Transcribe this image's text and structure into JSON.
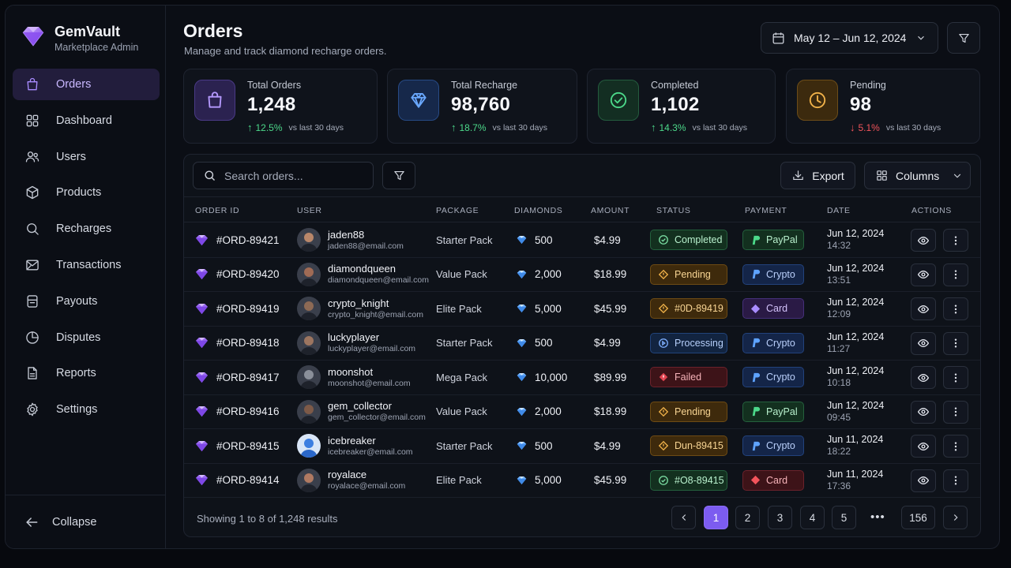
{
  "brand": {
    "name": "GemVault",
    "subtitle": "Marketplace Admin"
  },
  "sidebar": {
    "items": [
      {
        "label": "Orders",
        "icon": "shopping-bag-icon",
        "active": true
      },
      {
        "label": "Dashboard",
        "icon": "grid-icon"
      },
      {
        "label": "Users",
        "icon": "users-icon"
      },
      {
        "label": "Products",
        "icon": "box-icon"
      },
      {
        "label": "Recharges",
        "icon": "search-icon"
      },
      {
        "label": "Transactions",
        "icon": "transactions-icon"
      },
      {
        "label": "Payouts",
        "icon": "wallet-icon"
      },
      {
        "label": "Disputes",
        "icon": "pie-icon"
      },
      {
        "label": "Reports",
        "icon": "document-icon"
      },
      {
        "label": "Settings",
        "icon": "gear-icon"
      }
    ],
    "collapse_label": "Collapse"
  },
  "header": {
    "title": "Orders",
    "subtitle": "Manage and track diamond recharge orders.",
    "date_range": "May 12 – Jun 12, 2024"
  },
  "stats": [
    {
      "label": "Total Orders",
      "value": "1,248",
      "delta": "12.5%",
      "direction": "up",
      "note": "vs last 30 days",
      "color": "#a98cff"
    },
    {
      "label": "Total Recharge",
      "value": "98,760",
      "delta": "18.7%",
      "direction": "up",
      "note": "vs last 30 days",
      "color": "#5ea3ff"
    },
    {
      "label": "Completed",
      "value": "1,102",
      "delta": "14.3%",
      "direction": "up",
      "note": "vs last 30 days",
      "color": "#4cd98a"
    },
    {
      "label": "Pending",
      "value": "98",
      "delta": "5.1%",
      "direction": "down",
      "note": "vs last 30 days",
      "color": "#f2b34a"
    }
  ],
  "toolbar": {
    "search_placeholder": "Search orders...",
    "export_label": "Export",
    "columns_label": "Columns"
  },
  "table": {
    "columns": [
      "ORDER ID",
      "USER",
      "PACKAGE",
      "DIAMONDS",
      "AMOUNT",
      "STATUS",
      "PAYMENT",
      "DATE",
      "ACTIONS"
    ],
    "rows": [
      {
        "id": "#ORD-89421",
        "user": "jaden88",
        "email": "jaden88@email.com",
        "package": "Starter Pack",
        "diamonds": "500",
        "amount": "$4.99",
        "status": "Completed",
        "status_type": "completed",
        "payment": "PayPal",
        "payment_type": "paypal",
        "date": "Jun 12, 2024",
        "time": "14:32",
        "avatar": "#b9876a"
      },
      {
        "id": "#ORD-89420",
        "user": "diamondqueen",
        "email": "diamondqueen@email.com",
        "package": "Value Pack",
        "diamonds": "2,000",
        "amount": "$18.99",
        "status": "Pending",
        "status_type": "pending",
        "payment": "Crypto",
        "payment_type": "crypto",
        "date": "Jun 12, 2024",
        "time": "13:51",
        "avatar": "#a06b55"
      },
      {
        "id": "#ORD-89419",
        "user": "crypto_knight",
        "email": "crypto_knight@email.com",
        "package": "Elite Pack",
        "diamonds": "5,000",
        "amount": "$45.99",
        "status": "#0D-89419",
        "status_type": "pending",
        "payment": "Card",
        "payment_type": "card-v",
        "date": "Jun 12, 2024",
        "time": "12:09",
        "avatar": "#8d6a55"
      },
      {
        "id": "#ORD-89418",
        "user": "luckyplayer",
        "email": "luckyplayer@email.com",
        "package": "Starter Pack",
        "diamonds": "500",
        "amount": "$4.99",
        "status": "Processing",
        "status_type": "processing",
        "payment": "Crypto",
        "payment_type": "crypto",
        "date": "Jun 12, 2024",
        "time": "11:27",
        "avatar": "#9c7560"
      },
      {
        "id": "#ORD-89417",
        "user": "moonshot",
        "email": "moonshot@email.com",
        "package": "Mega Pack",
        "diamonds": "10,000",
        "amount": "$89.99",
        "status": "Failed",
        "status_type": "failed",
        "payment": "Crypto",
        "payment_type": "crypto",
        "date": "Jun 12, 2024",
        "time": "10:18",
        "avatar": "#8a8f99"
      },
      {
        "id": "#ORD-89416",
        "user": "gem_collector",
        "email": "gem_collector@email.com",
        "package": "Value Pack",
        "diamonds": "2,000",
        "amount": "$18.99",
        "status": "Pending",
        "status_type": "pending",
        "payment": "PayPal",
        "payment_type": "paypal",
        "date": "Jun 12, 2024",
        "time": "09:45",
        "avatar": "#7d5a48"
      },
      {
        "id": "#ORD-89415",
        "user": "icebreaker",
        "email": "icebreaker@email.com",
        "package": "Starter Pack",
        "diamonds": "500",
        "amount": "$4.99",
        "status": "Dun-89415",
        "status_type": "pending",
        "payment": "Crypto",
        "payment_type": "crypto",
        "date": "Jun 11, 2024",
        "time": "18:22",
        "avatar": "#3d7fe0"
      },
      {
        "id": "#ORD-89414",
        "user": "royalace",
        "email": "royalace@email.com",
        "package": "Elite Pack",
        "diamonds": "5,000",
        "amount": "$45.99",
        "status": "#O8-89415",
        "status_type": "completed",
        "payment": "Card",
        "payment_type": "card-r",
        "date": "Jun 11, 2024",
        "time": "17:36",
        "avatar": "#b07a62"
      }
    ]
  },
  "pagination": {
    "summary": "Showing 1 to 8 of 1,248 results",
    "pages": [
      "1",
      "2",
      "3",
      "4",
      "5"
    ],
    "ellipsis": "•••",
    "last": "156",
    "current": "1"
  }
}
